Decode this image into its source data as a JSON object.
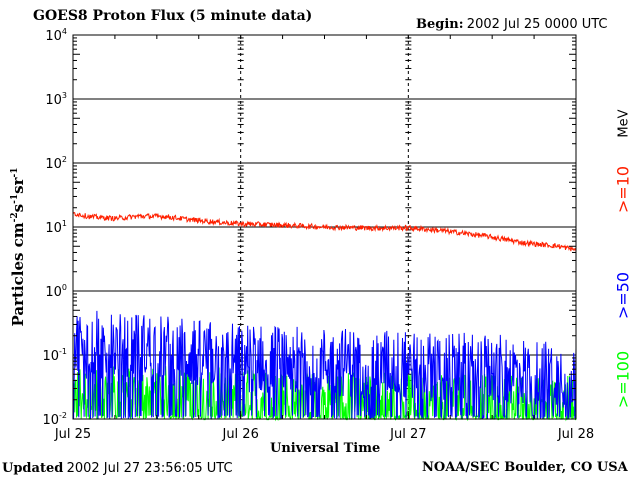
{
  "header": {
    "title": "GOES8 Proton Flux (5 minute data)",
    "begin_label": "Begin:",
    "begin_value": "2002 Jul 25 0000 UTC"
  },
  "footer": {
    "updated_label": "Updated",
    "updated_value": "2002 Jul 27 23:56:05 UTC",
    "source": "NOAA/SEC Boulder, CO USA"
  },
  "chart_data": {
    "type": "line",
    "title": "GOES8 Proton Flux (5 minute data)",
    "xlabel": "Universal Time",
    "ylabel_base": "Particles cm",
    "ylabel_sup1": "-2",
    "ylabel_mid1": "s",
    "ylabel_sup2": "-1",
    "ylabel_mid2": "sr",
    "ylabel_sup3": "-1",
    "yscale": "log",
    "ylim": [
      0.01,
      10000
    ],
    "y_ticks": [
      {
        "value": 10000,
        "base": "10",
        "exp": "4"
      },
      {
        "value": 1000,
        "base": "10",
        "exp": "3"
      },
      {
        "value": 100,
        "base": "10",
        "exp": "2"
      },
      {
        "value": 10,
        "base": "10",
        "exp": "1"
      },
      {
        "value": 1,
        "base": "10",
        "exp": "0"
      },
      {
        "value": 0.1,
        "base": "10",
        "exp": "-1"
      },
      {
        "value": 0.01,
        "base": "10",
        "exp": "-2"
      }
    ],
    "x_ticks": [
      "Jul 25",
      "Jul 26",
      "Jul 27",
      "Jul 28"
    ],
    "xlim_days": [
      0,
      3
    ],
    "grid": "horizontal solid at decades, vertical dashed at day boundaries",
    "threshold_line": {
      "value": 10,
      "style": "dashed"
    },
    "legend_unit": "MeV",
    "series": [
      {
        "name": ">=10",
        "color": "#ff2000",
        "points": [
          [
            0.0,
            16.5
          ],
          [
            0.1,
            14.5
          ],
          [
            0.25,
            13.6
          ],
          [
            0.4,
            14.8
          ],
          [
            0.55,
            14.6
          ],
          [
            0.7,
            13.0
          ],
          [
            0.85,
            12.0
          ],
          [
            1.0,
            11.2
          ],
          [
            1.2,
            10.8
          ],
          [
            1.5,
            10.0
          ],
          [
            1.8,
            9.6
          ],
          [
            2.0,
            9.7
          ],
          [
            2.2,
            8.8
          ],
          [
            2.45,
            7.3
          ],
          [
            2.7,
            5.6
          ],
          [
            2.9,
            5.0
          ],
          [
            3.0,
            4.4
          ]
        ]
      },
      {
        "name": ">=50",
        "color": "#0000ff",
        "points": [
          [
            0.0,
            0.15
          ],
          [
            0.25,
            0.14
          ],
          [
            0.5,
            0.13
          ],
          [
            0.75,
            0.1
          ],
          [
            1.0,
            0.09
          ],
          [
            1.5,
            0.08
          ],
          [
            2.0,
            0.07
          ],
          [
            2.5,
            0.06
          ],
          [
            3.0,
            0.05
          ]
        ]
      },
      {
        "name": ">=100",
        "color": "#00ff00",
        "points": [
          [
            0.0,
            0.025
          ],
          [
            0.5,
            0.025
          ],
          [
            1.0,
            0.022
          ],
          [
            1.5,
            0.02
          ],
          [
            2.0,
            0.02
          ],
          [
            2.5,
            0.018
          ],
          [
            3.0,
            0.017
          ]
        ]
      }
    ]
  }
}
